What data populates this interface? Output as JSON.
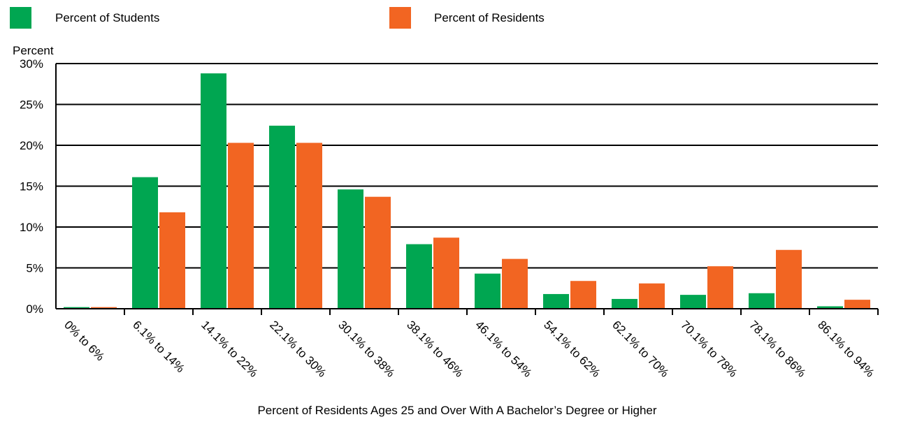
{
  "chart_data": {
    "type": "bar",
    "title": "",
    "xlabel": "Percent of Residents Ages 25 and Over With A Bachelor’s Degree or Higher",
    "ylabel": "Percent",
    "ylim": [
      0,
      30
    ],
    "yticks": [
      "0%",
      "5%",
      "10%",
      "15%",
      "20%",
      "25%",
      "30%"
    ],
    "ytick_values": [
      0,
      5,
      10,
      15,
      20,
      25,
      30
    ],
    "grid": true,
    "legend_position": "top-left",
    "categories": [
      "0% to 6%",
      "6.1% to 14%",
      "14.1% to 22%",
      "22.1% to 30%",
      "30.1% to 38%",
      "38.1% to 46%",
      "46.1% to 54%",
      "54.1% to 62%",
      "62.1% to 70%",
      "70.1% to 78%",
      "78.1% to 86%",
      "86.1% to 94%"
    ],
    "series": [
      {
        "name": "Percent of Students",
        "color": "#00a651",
        "values": [
          0.2,
          16.1,
          28.8,
          22.4,
          14.6,
          7.9,
          4.3,
          1.8,
          1.2,
          1.7,
          1.9,
          0.3
        ]
      },
      {
        "name": "Percent of Residents",
        "color": "#f26522",
        "values": [
          0.2,
          11.8,
          20.3,
          20.3,
          13.7,
          8.7,
          6.1,
          3.4,
          3.1,
          5.2,
          7.2,
          1.1
        ]
      }
    ]
  }
}
